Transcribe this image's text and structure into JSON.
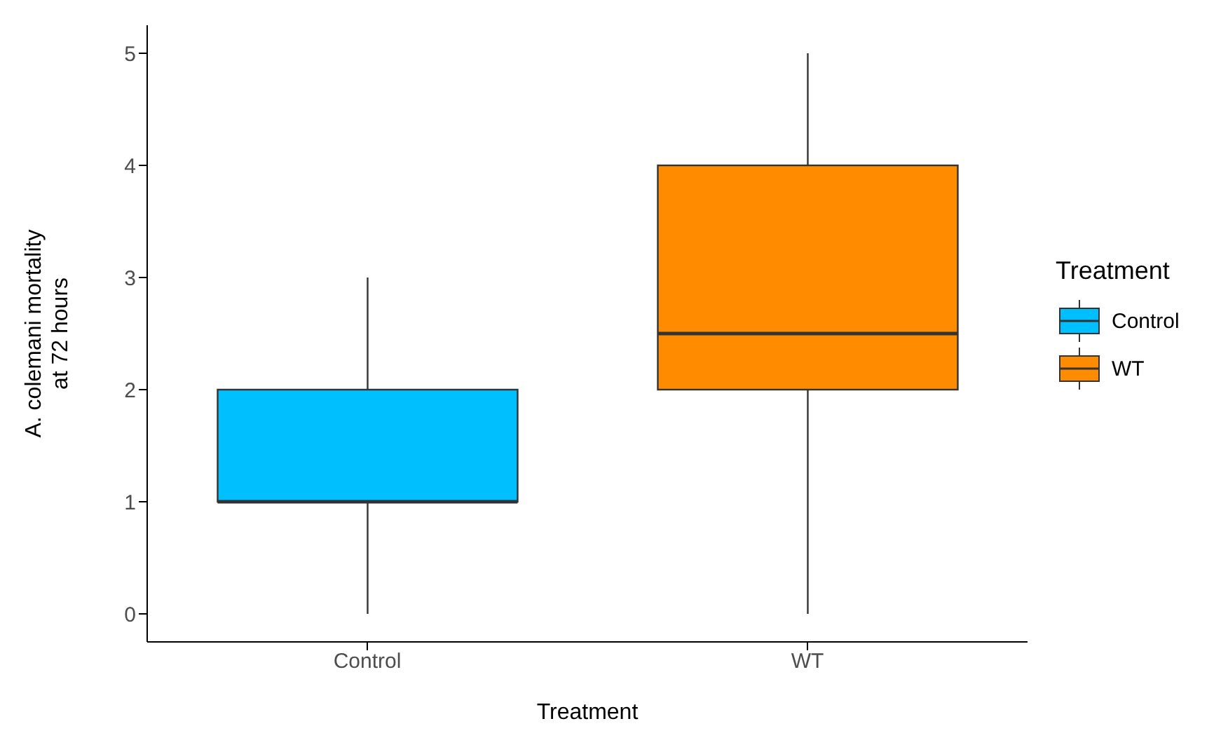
{
  "chart_data": {
    "type": "box",
    "xlabel": "Treatment",
    "ylabel": "A. colemani mortality at 72 hours",
    "legend_title": "Treatment",
    "categories": [
      "Control",
      "WT"
    ],
    "series": [
      {
        "name": "Control",
        "color": "#00bfff",
        "boxes": [
          {
            "low": 0,
            "q1": 1,
            "median": 1,
            "q3": 2,
            "high": 3
          },
          null
        ]
      },
      {
        "name": "WT",
        "color": "#ff8c00",
        "boxes": [
          null,
          {
            "low": 0,
            "q1": 2,
            "median": 2.5,
            "q3": 4,
            "high": 5
          }
        ]
      }
    ],
    "ylim": [
      -0.25,
      5.25
    ],
    "yticks": [
      0,
      1,
      2,
      3,
      4,
      5
    ],
    "legend": "right"
  }
}
